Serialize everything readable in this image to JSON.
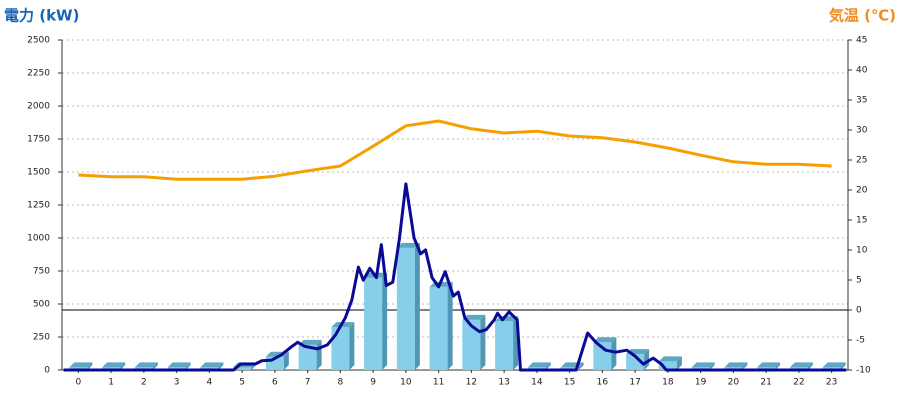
{
  "chart_data": {
    "type": "bar",
    "y_title": "電力 (kW)",
    "y2_title": "気温 (℃)",
    "categories": [
      "0",
      "1",
      "2",
      "3",
      "4",
      "5",
      "6",
      "7",
      "8",
      "9",
      "10",
      "11",
      "12",
      "13",
      "14",
      "15",
      "16",
      "17",
      "18",
      "19",
      "20",
      "21",
      "22",
      "23"
    ],
    "xlim": [
      -0.5,
      23.5
    ],
    "ylim": [
      0,
      2500
    ],
    "yticks": [
      0,
      250,
      500,
      750,
      1000,
      1250,
      1500,
      1750,
      2000,
      2250,
      2500
    ],
    "y2lim": [
      -10,
      45
    ],
    "y2ticks": [
      -10,
      -5,
      0,
      5,
      10,
      15,
      20,
      25,
      30,
      35,
      40,
      45
    ],
    "grid": true,
    "series": [
      {
        "type": "bar",
        "color": "#87ceeb",
        "values": [
          20,
          20,
          20,
          20,
          20,
          20,
          100,
          190,
          325,
          700,
          925,
          630,
          380,
          370,
          20,
          20,
          210,
          120,
          65,
          20,
          20,
          20,
          20,
          20
        ]
      },
      {
        "type": "line",
        "color": "#f5a000",
        "axis": "y2",
        "values": [
          22.5,
          22.2,
          22.2,
          21.8,
          21.8,
          21.8,
          22.3,
          23.2,
          24,
          27.3,
          30.7,
          31.5,
          30.2,
          29.5,
          29.8,
          29,
          28.7,
          28,
          27,
          25.8,
          24.7,
          24.3,
          24.3,
          24
        ]
      },
      {
        "type": "line",
        "color": "#0a0a96",
        "x": [
          -0.45,
          4.74,
          4.95,
          5.4,
          5.6,
          5.9,
          6.2,
          6.5,
          6.7,
          6.9,
          7.3,
          7.6,
          7.85,
          8.15,
          8.35,
          8.55,
          8.7,
          8.9,
          9.1,
          9.25,
          9.4,
          9.6,
          9.8,
          10.0,
          10.25,
          10.45,
          10.6,
          10.8,
          11.0,
          11.2,
          11.45,
          11.6,
          11.8,
          12.0,
          12.25,
          12.45,
          12.7,
          12.8,
          12.95,
          13.15,
          13.4,
          13.5,
          15.2,
          15.55,
          15.8,
          16.1,
          16.4,
          16.75,
          17.0,
          17.25,
          17.55,
          17.8,
          17.95,
          23.45
        ],
        "values": [
          0,
          0,
          45,
          45,
          70,
          75,
          115,
          175,
          210,
          180,
          160,
          190,
          265,
          395,
          530,
          780,
          680,
          770,
          700,
          950,
          640,
          665,
          990,
          1410,
          1000,
          880,
          910,
          700,
          630,
          745,
          560,
          590,
          395,
          335,
          290,
          305,
          380,
          430,
          380,
          440,
          380,
          0,
          0,
          280,
          210,
          150,
          135,
          150,
          105,
          45,
          90,
          45,
          0,
          0
        ]
      }
    ]
  }
}
